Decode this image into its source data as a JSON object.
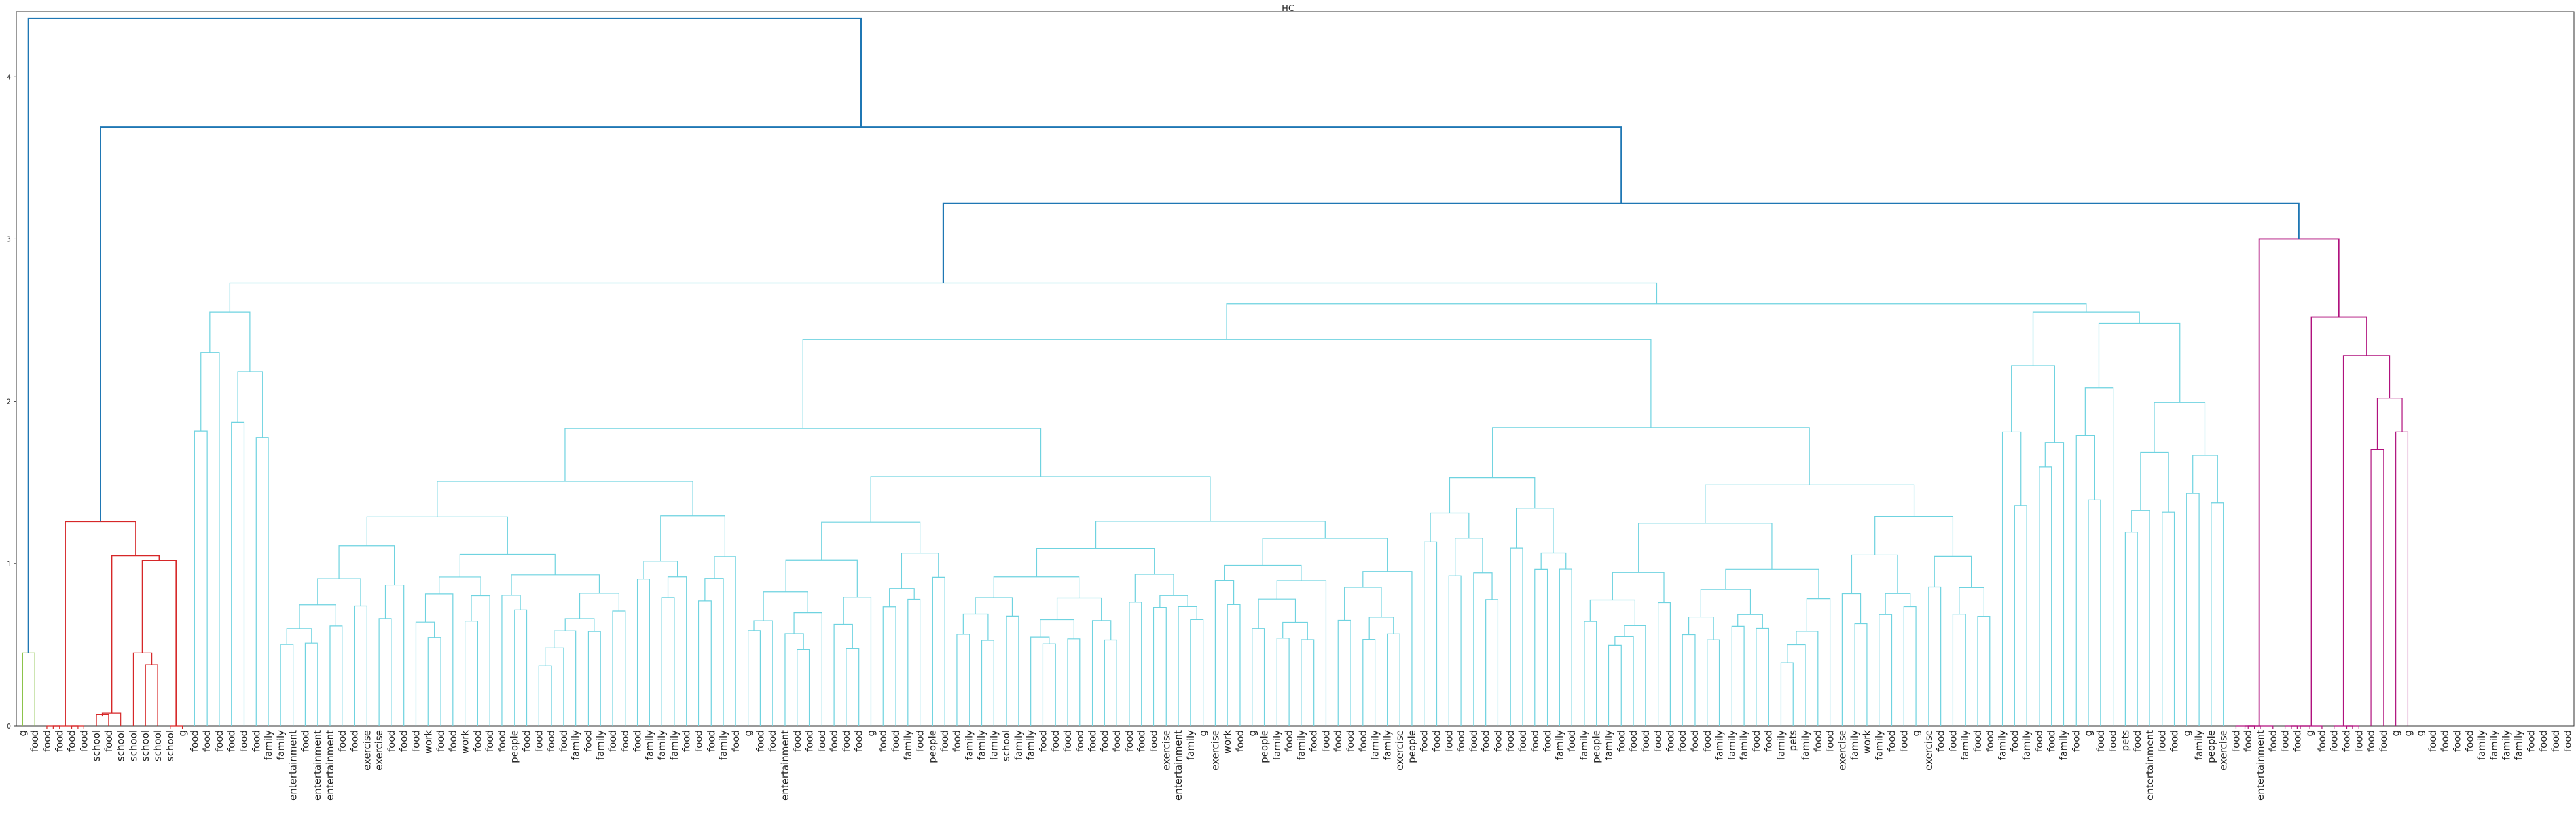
{
  "chart_data": {
    "type": "dendrogram",
    "title": "HC",
    "xlabel": "",
    "ylabel": "",
    "ylim": [
      0,
      4.4
    ],
    "yticks": [
      0,
      1,
      2,
      3,
      4
    ],
    "grid": false,
    "colors": {
      "cluster_green": "#8bc34a",
      "cluster_red": "#d62728",
      "cluster_cyan": "#6fd3e0",
      "cluster_magenta": "#b0127e",
      "above_threshold": "#1f77b4"
    },
    "leaf_labels": [
      "g",
      "food",
      "food",
      "food",
      "food",
      "food",
      "school",
      "food",
      "school",
      "school",
      "school",
      "school",
      "school",
      "g",
      "food",
      "food",
      "food",
      "food",
      "food",
      "food",
      "family",
      "family",
      "entertainment",
      "food",
      "entertainment",
      "entertainment",
      "food",
      "food",
      "exercise",
      "exercise",
      "food",
      "food",
      "food",
      "work",
      "food",
      "food",
      "work",
      "food",
      "food",
      "food",
      "people",
      "food",
      "food",
      "food",
      "food",
      "family",
      "food",
      "family",
      "food",
      "food",
      "food",
      "family",
      "family",
      "family",
      "food",
      "food",
      "food",
      "family",
      "food",
      "g",
      "food",
      "food",
      "entertainment",
      "food",
      "food",
      "food",
      "food",
      "food",
      "food",
      "g",
      "food",
      "food",
      "family",
      "food",
      "people",
      "food",
      "food",
      "family",
      "family",
      "family",
      "school",
      "family",
      "family",
      "food",
      "food",
      "food",
      "food",
      "food",
      "food",
      "food",
      "food",
      "food",
      "food",
      "exercise",
      "entertainment",
      "family",
      "g",
      "exercise",
      "work",
      "food",
      "g",
      "people",
      "family",
      "food",
      "family",
      "food",
      "food",
      "food",
      "food",
      "food",
      "family",
      "family",
      "exercise",
      "people",
      "food",
      "food",
      "food",
      "food",
      "food",
      "food",
      "food",
      "food",
      "food",
      "food",
      "food",
      "family",
      "food",
      "family",
      "people",
      "family",
      "food",
      "food",
      "food",
      "food",
      "food",
      "food",
      "food",
      "food",
      "family",
      "family",
      "family",
      "food",
      "food",
      "family",
      "pets",
      "family",
      "food",
      "food",
      "exercise",
      "family",
      "work",
      "family",
      "food",
      "food",
      "g",
      "exercise",
      "food",
      "food",
      "family",
      "food",
      "food",
      "family",
      "food",
      "family",
      "food",
      "food",
      "family",
      "food",
      "g",
      "food",
      "food",
      "pets",
      "food",
      "entertainment",
      "food",
      "food",
      "g",
      "family",
      "people",
      "exercise",
      "food",
      "food",
      "entertainment",
      "food",
      "food",
      "food",
      "g",
      "food",
      "food",
      "food",
      "food",
      "food",
      "food",
      "g",
      "g",
      "g",
      "food",
      "food",
      "food",
      "food",
      "family",
      "family",
      "family",
      "family",
      "food",
      "food",
      "food",
      "food"
    ]
  }
}
